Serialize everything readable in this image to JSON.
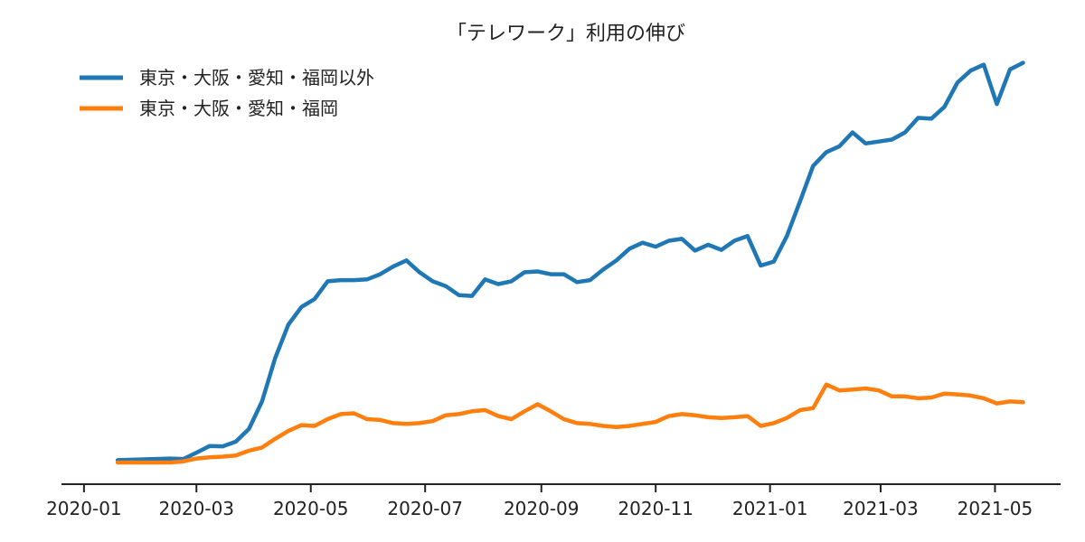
{
  "chart_data": {
    "type": "line",
    "title": "「テレワーク」利用の伸び",
    "xlabel": "",
    "ylabel": "",
    "x_tick_labels": [
      "2020-01",
      "2020-03",
      "2020-05",
      "2020-07",
      "2020-09",
      "2020-11",
      "2021-01",
      "2021-03",
      "2021-05"
    ],
    "x_range": [
      "2019-12-20",
      "2021-06-05"
    ],
    "y_axis_visible": false,
    "y_range": [
      0,
      100
    ],
    "grid": false,
    "legend_position": "top-left",
    "series": [
      {
        "name": "東京・大阪・愛知・福岡以外",
        "color": "#1f77b4",
        "points": [
          [
            "2020-01-19",
            0.6
          ],
          [
            "2020-02-02",
            0.8
          ],
          [
            "2020-02-16",
            1.0
          ],
          [
            "2020-02-23",
            0.9
          ],
          [
            "2020-03-01",
            2.5
          ],
          [
            "2020-03-08",
            4.2
          ],
          [
            "2020-03-15",
            4.1
          ],
          [
            "2020-03-22",
            5.3
          ],
          [
            "2020-03-29",
            8.5
          ],
          [
            "2020-04-05",
            15.5
          ],
          [
            "2020-04-12",
            26.5
          ],
          [
            "2020-04-19",
            35.0
          ],
          [
            "2020-04-26",
            39.5
          ],
          [
            "2020-05-03",
            41.5
          ],
          [
            "2020-05-10",
            46.0
          ],
          [
            "2020-05-17",
            46.3
          ],
          [
            "2020-05-24",
            46.3
          ],
          [
            "2020-05-31",
            46.5
          ],
          [
            "2020-06-07",
            47.8
          ],
          [
            "2020-06-14",
            49.8
          ],
          [
            "2020-06-21",
            51.3
          ],
          [
            "2020-06-28",
            48.3
          ],
          [
            "2020-07-05",
            46.0
          ],
          [
            "2020-07-12",
            44.8
          ],
          [
            "2020-07-19",
            42.5
          ],
          [
            "2020-07-26",
            42.3
          ],
          [
            "2020-08-02",
            46.5
          ],
          [
            "2020-08-09",
            45.3
          ],
          [
            "2020-08-16",
            46.0
          ],
          [
            "2020-08-23",
            48.3
          ],
          [
            "2020-08-30",
            48.5
          ],
          [
            "2020-09-06",
            47.8
          ],
          [
            "2020-09-13",
            47.8
          ],
          [
            "2020-09-20",
            45.8
          ],
          [
            "2020-09-27",
            46.3
          ],
          [
            "2020-10-04",
            49.0
          ],
          [
            "2020-10-11",
            51.3
          ],
          [
            "2020-10-18",
            54.3
          ],
          [
            "2020-10-25",
            55.8
          ],
          [
            "2020-11-01",
            54.8
          ],
          [
            "2020-11-08",
            56.3
          ],
          [
            "2020-11-15",
            56.8
          ],
          [
            "2020-11-22",
            53.8
          ],
          [
            "2020-11-29",
            55.3
          ],
          [
            "2020-12-06",
            54.0
          ],
          [
            "2020-12-13",
            56.3
          ],
          [
            "2020-12-20",
            57.5
          ],
          [
            "2020-12-27",
            50.0
          ],
          [
            "2021-01-03",
            51.0
          ],
          [
            "2021-01-10",
            57.5
          ],
          [
            "2021-01-17",
            66.3
          ],
          [
            "2021-01-24",
            75.3
          ],
          [
            "2021-01-31",
            78.8
          ],
          [
            "2021-02-07",
            80.3
          ],
          [
            "2021-02-14",
            83.8
          ],
          [
            "2021-02-21",
            81.0
          ],
          [
            "2021-02-28",
            81.5
          ],
          [
            "2021-03-07",
            82.0
          ],
          [
            "2021-03-14",
            83.8
          ],
          [
            "2021-03-21",
            87.5
          ],
          [
            "2021-03-28",
            87.3
          ],
          [
            "2021-04-04",
            90.3
          ],
          [
            "2021-04-11",
            96.5
          ],
          [
            "2021-04-18",
            99.5
          ],
          [
            "2021-04-25",
            101.0
          ],
          [
            "2021-05-02",
            91.0
          ],
          [
            "2021-05-09",
            99.8
          ],
          [
            "2021-05-16",
            101.5
          ]
        ]
      },
      {
        "name": "東京・大阪・愛知・福岡",
        "color": "#ff7f0e",
        "points": [
          [
            "2020-01-19",
            0.0
          ],
          [
            "2020-02-02",
            0.0
          ],
          [
            "2020-02-16",
            0.0
          ],
          [
            "2020-02-23",
            0.3
          ],
          [
            "2020-03-01",
            1.0
          ],
          [
            "2020-03-08",
            1.3
          ],
          [
            "2020-03-15",
            1.5
          ],
          [
            "2020-03-22",
            1.8
          ],
          [
            "2020-03-29",
            3.0
          ],
          [
            "2020-04-05",
            3.8
          ],
          [
            "2020-04-12",
            6.0
          ],
          [
            "2020-04-19",
            8.0
          ],
          [
            "2020-04-26",
            9.5
          ],
          [
            "2020-05-03",
            9.3
          ],
          [
            "2020-05-10",
            11.0
          ],
          [
            "2020-05-17",
            12.3
          ],
          [
            "2020-05-24",
            12.5
          ],
          [
            "2020-05-31",
            11.0
          ],
          [
            "2020-06-07",
            10.8
          ],
          [
            "2020-06-14",
            10.0
          ],
          [
            "2020-06-21",
            9.8
          ],
          [
            "2020-06-28",
            10.0
          ],
          [
            "2020-07-05",
            10.5
          ],
          [
            "2020-07-12",
            12.0
          ],
          [
            "2020-07-19",
            12.3
          ],
          [
            "2020-07-26",
            13.0
          ],
          [
            "2020-08-02",
            13.3
          ],
          [
            "2020-08-09",
            11.8
          ],
          [
            "2020-08-16",
            11.0
          ],
          [
            "2020-08-23",
            13.0
          ],
          [
            "2020-08-30",
            14.8
          ],
          [
            "2020-09-06",
            13.0
          ],
          [
            "2020-09-13",
            11.0
          ],
          [
            "2020-09-20",
            10.0
          ],
          [
            "2020-09-27",
            9.8
          ],
          [
            "2020-10-04",
            9.3
          ],
          [
            "2020-10-11",
            9.0
          ],
          [
            "2020-10-18",
            9.3
          ],
          [
            "2020-10-25",
            9.8
          ],
          [
            "2020-11-01",
            10.3
          ],
          [
            "2020-11-08",
            11.8
          ],
          [
            "2020-11-15",
            12.3
          ],
          [
            "2020-11-22",
            12.0
          ],
          [
            "2020-11-29",
            11.5
          ],
          [
            "2020-12-06",
            11.3
          ],
          [
            "2020-12-13",
            11.5
          ],
          [
            "2020-12-20",
            11.8
          ],
          [
            "2020-12-27",
            9.3
          ],
          [
            "2021-01-03",
            10.0
          ],
          [
            "2021-01-10",
            11.3
          ],
          [
            "2021-01-17",
            13.3
          ],
          [
            "2021-01-24",
            13.8
          ],
          [
            "2021-01-31",
            19.8
          ],
          [
            "2021-02-07",
            18.3
          ],
          [
            "2021-02-14",
            18.5
          ],
          [
            "2021-02-21",
            18.8
          ],
          [
            "2021-02-28",
            18.3
          ],
          [
            "2021-03-07",
            16.8
          ],
          [
            "2021-03-14",
            16.8
          ],
          [
            "2021-03-21",
            16.3
          ],
          [
            "2021-03-28",
            16.5
          ],
          [
            "2021-04-04",
            17.5
          ],
          [
            "2021-04-11",
            17.3
          ],
          [
            "2021-04-18",
            17.0
          ],
          [
            "2021-04-25",
            16.3
          ],
          [
            "2021-05-02",
            15.0
          ],
          [
            "2021-05-09",
            15.5
          ],
          [
            "2021-05-16",
            15.3
          ]
        ]
      }
    ]
  }
}
